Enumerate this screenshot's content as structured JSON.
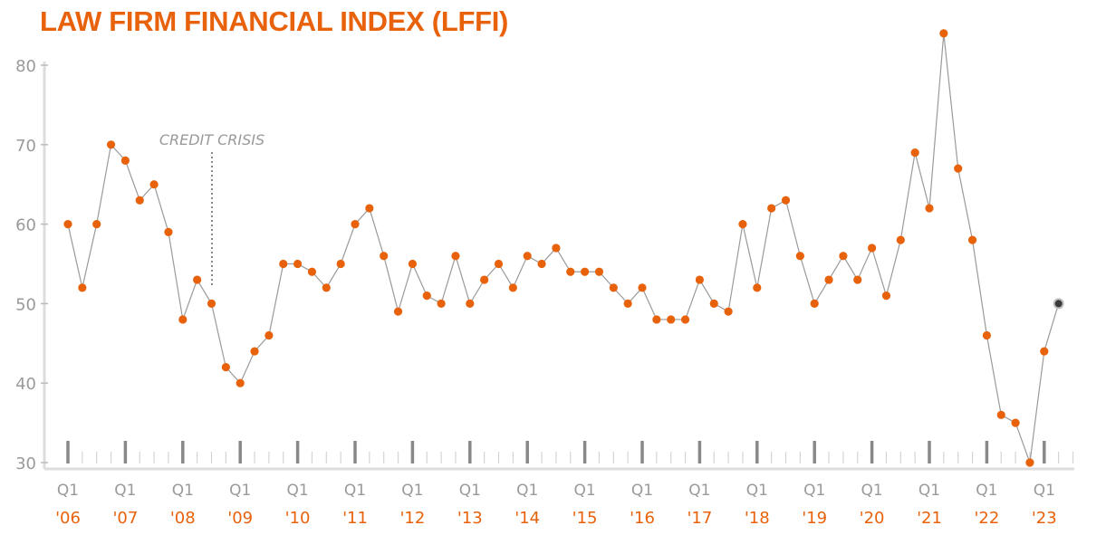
{
  "colors": {
    "accent": "#e8620c",
    "line": "#9a9a9a",
    "axis": "#dddddd",
    "last_point": "#3a3a3a"
  },
  "chart_data": {
    "type": "line",
    "title": "LAW FIRM FINANCIAL INDEX (LFFI)",
    "xlabel": "",
    "ylabel": "",
    "ylim": [
      30,
      80
    ],
    "yticks": [
      80,
      70,
      60,
      50,
      40,
      30
    ],
    "grid": false,
    "quarter_label": "Q1",
    "year_labels": [
      "'06",
      "'07",
      "'08",
      "'09",
      "'10",
      "'11",
      "'12",
      "'13",
      "'14",
      "'15",
      "'16",
      "'17",
      "'18",
      "'19",
      "'20",
      "'21",
      "'22",
      "'23"
    ],
    "annotation": {
      "text": "CREDIT CRISIS",
      "quarter": "2008 Q3"
    },
    "series": [
      {
        "x": [
          "2006 Q1",
          "2006 Q2",
          "2006 Q3",
          "2006 Q4",
          "2007 Q1",
          "2007 Q2",
          "2007 Q3",
          "2007 Q4",
          "2008 Q1",
          "2008 Q2",
          "2008 Q3",
          "2008 Q4",
          "2009 Q1",
          "2009 Q2",
          "2009 Q3",
          "2009 Q4",
          "2010 Q1",
          "2010 Q2",
          "2010 Q3",
          "2010 Q4",
          "2011 Q1",
          "2011 Q2",
          "2011 Q3",
          "2011 Q4",
          "2012 Q1",
          "2012 Q2",
          "2012 Q3",
          "2012 Q4",
          "2013 Q1",
          "2013 Q2",
          "2013 Q3",
          "2013 Q4",
          "2014 Q1",
          "2014 Q2",
          "2014 Q3",
          "2014 Q4",
          "2015 Q1",
          "2015 Q2",
          "2015 Q3",
          "2015 Q4",
          "2016 Q1",
          "2016 Q2",
          "2016 Q3",
          "2016 Q4",
          "2017 Q1",
          "2017 Q2",
          "2017 Q3",
          "2017 Q4",
          "2018 Q1",
          "2018 Q2",
          "2018 Q3",
          "2018 Q4",
          "2019 Q1",
          "2019 Q2",
          "2019 Q3",
          "2019 Q4",
          "2020 Q1",
          "2020 Q2",
          "2020 Q3",
          "2020 Q4",
          "2021 Q1",
          "2021 Q2",
          "2021 Q3",
          "2021 Q4",
          "2022 Q1",
          "2022 Q2",
          "2022 Q3",
          "2022 Q4",
          "2023 Q1",
          "2023 Q2"
        ],
        "values": [
          60,
          52,
          60,
          70,
          68,
          63,
          65,
          59,
          48,
          53,
          50,
          42,
          40,
          44,
          46,
          55,
          55,
          54,
          52,
          55,
          60,
          62,
          56,
          49,
          55,
          51,
          50,
          56,
          50,
          53,
          55,
          52,
          56,
          55,
          57,
          54,
          54,
          54,
          52,
          50,
          52,
          48,
          48,
          48,
          53,
          50,
          49,
          60,
          52,
          62,
          63,
          56,
          50,
          53,
          56,
          53,
          57,
          51,
          58,
          69,
          62,
          84,
          67,
          58,
          46,
          36,
          35,
          30,
          44,
          50
        ]
      }
    ]
  }
}
